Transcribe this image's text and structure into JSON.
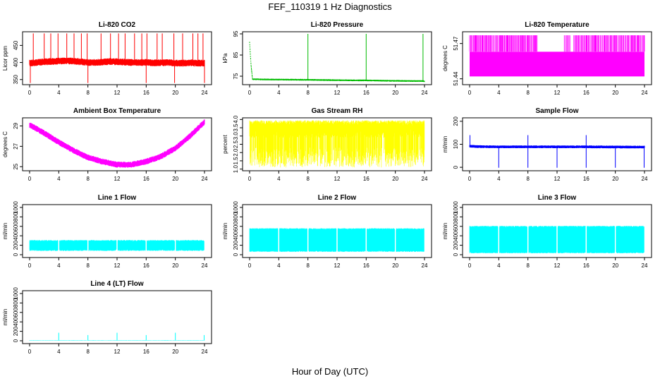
{
  "figure": {
    "title": "FEF_110319  1 Hz Diagnostics",
    "xlabel": "Hour of Day (UTC)"
  },
  "chart_data": [
    {
      "id": "co2",
      "type": "line",
      "title": "Li-820 CO2",
      "ylabel": "Licor ppm",
      "color": "#ff0000",
      "xlim": [
        0,
        24
      ],
      "ylim": [
        335,
        490
      ],
      "xticks": [
        0,
        4,
        8,
        12,
        16,
        20,
        24
      ],
      "yticks": [
        350,
        400,
        450
      ],
      "x": [
        0,
        1,
        2,
        3,
        4,
        5,
        6,
        7,
        8,
        9,
        10,
        11,
        12,
        13,
        14,
        15,
        16,
        17,
        18,
        19,
        20,
        21,
        22,
        23,
        24
      ],
      "values": [
        398,
        400,
        402,
        403,
        404,
        405,
        404,
        402,
        400,
        400,
        401,
        403,
        402,
        401,
        400,
        400,
        400,
        399,
        399,
        400,
        398,
        398,
        399,
        398,
        398
      ],
      "band": 10,
      "spikes_up": [
        0.5,
        2.0,
        2.9,
        3.9,
        5.1,
        6.1,
        7.1,
        7.9,
        9.8,
        11.1,
        12.2,
        13.1,
        14.4,
        15.4,
        16.1,
        17.5,
        18.2,
        19.8,
        21.0,
        22.4,
        23.1,
        23.8
      ],
      "spike_up_value": 485,
      "spikes_down": [
        0.1,
        8.0,
        16.0,
        19.9,
        24.0
      ],
      "spike_down_value": 340
    },
    {
      "id": "pressure",
      "type": "line",
      "title": "Li-820 Pressure",
      "ylabel": "kPa",
      "color": "#00bb00",
      "xlim": [
        0,
        24
      ],
      "ylim": [
        71,
        96
      ],
      "xticks": [
        0,
        4,
        8,
        12,
        16,
        20,
        24
      ],
      "yticks": [
        75,
        85,
        95
      ],
      "x": [
        0,
        0.2,
        0.4,
        1,
        4,
        8,
        12,
        16,
        20,
        23.8,
        24
      ],
      "values": [
        91,
        80,
        73.6,
        73.5,
        73.4,
        73.3,
        73.1,
        73.0,
        72.8,
        72.7,
        72.6
      ],
      "band": 0.4,
      "spikes_up": [
        8.0,
        16.0,
        23.8
      ],
      "spike_up_value": 95,
      "spikes_down": [],
      "spike_down_value": 73
    },
    {
      "id": "licor-temp",
      "type": "line",
      "title": "Li-820 Temperature",
      "ylabel": "degrees C",
      "color": "#ff00ff",
      "xlim": [
        0,
        24
      ],
      "ylim": [
        51.435,
        51.48
      ],
      "xticks": [
        0,
        4,
        8,
        12,
        16,
        20,
        24
      ],
      "yticks": [
        51.44,
        51.47
      ],
      "ytick_labels": [
        "51.44",
        "51.47"
      ],
      "band_low": 51.442,
      "band_high": 51.463,
      "spike_up_value": 51.477,
      "spike_ranges": [
        [
          0.0,
          9.3
        ],
        [
          13.0,
          13.8
        ],
        [
          14.3,
          24.0
        ]
      ]
    },
    {
      "id": "box-temp",
      "type": "line",
      "title": "Ambient Box Temperature",
      "ylabel": "degrees C",
      "color": "#ff00ff",
      "xlim": [
        0,
        24
      ],
      "ylim": [
        24.6,
        29.8
      ],
      "xticks": [
        0,
        4,
        8,
        12,
        16,
        20,
        24
      ],
      "yticks": [
        25,
        27,
        29
      ],
      "x": [
        0,
        2,
        4,
        6,
        8,
        10,
        12,
        14,
        16,
        18,
        20,
        22,
        24
      ],
      "values": [
        29.1,
        28.3,
        27.4,
        26.6,
        25.9,
        25.5,
        25.2,
        25.2,
        25.5,
        26.0,
        26.8,
        28.0,
        29.4
      ],
      "band": 0.3
    },
    {
      "id": "rh",
      "type": "line",
      "title": "Gas Stream RH",
      "ylabel": "percent",
      "color": "#ffff00",
      "xlim": [
        0,
        24
      ],
      "ylim": [
        0.9,
        4.1
      ],
      "xticks": [
        0,
        4,
        8,
        12,
        16,
        20,
        24
      ],
      "yticks": [
        1.0,
        1.5,
        2.0,
        2.5,
        3.0,
        3.5,
        4.0
      ],
      "ytick_labels": [
        "1.0",
        "1.5",
        "2.0",
        "2.5",
        "3.0",
        "3.5",
        "4.0"
      ],
      "band_low": 1.1,
      "band_high": 3.95,
      "base_level": 3.5
    },
    {
      "id": "sample-flow",
      "type": "line",
      "title": "Sample Flow",
      "ylabel": "ml/min",
      "color": "#0000ff",
      "xlim": [
        0,
        24
      ],
      "ylim": [
        -15,
        215
      ],
      "xticks": [
        0,
        4,
        8,
        12,
        16,
        20,
        24
      ],
      "yticks": [
        0,
        100,
        200
      ],
      "x": [
        0,
        1,
        4,
        8,
        12,
        16,
        20,
        24
      ],
      "values": [
        92,
        90,
        89,
        89,
        89,
        89,
        88,
        88
      ],
      "band": 6,
      "spikes_up": [
        0.05,
        8.0,
        16.0
      ],
      "spike_up_value": 140,
      "spikes_down": [
        4.0,
        8.0,
        12.0,
        16.0,
        20.0,
        23.95
      ],
      "spike_down_value": -2
    },
    {
      "id": "line1-flow",
      "type": "line",
      "title": "Line 1 Flow",
      "ylabel": "ml/min",
      "color": "#00ffff",
      "xlim": [
        0,
        24
      ],
      "ylim": [
        -60,
        1060
      ],
      "xticks": [
        0,
        4,
        8,
        12,
        16,
        20,
        24
      ],
      "yticks": [
        0,
        200,
        400,
        600,
        800,
        1000
      ],
      "band_low": 80,
      "band_high": 310,
      "gaps": [
        4,
        8,
        12,
        16,
        20
      ]
    },
    {
      "id": "line2-flow",
      "type": "line",
      "title": "Line 2 Flow",
      "ylabel": "ml/min",
      "color": "#00ffff",
      "xlim": [
        0,
        24
      ],
      "ylim": [
        -60,
        1060
      ],
      "xticks": [
        0,
        4,
        8,
        12,
        16,
        20,
        24
      ],
      "yticks": [
        0,
        200,
        400,
        600,
        800,
        1000
      ],
      "band_low": 60,
      "band_high": 560,
      "gaps": [
        4,
        8,
        12,
        16,
        20
      ]
    },
    {
      "id": "line3-flow",
      "type": "line",
      "title": "Line 3 Flow",
      "ylabel": "ml/min",
      "color": "#00ffff",
      "xlim": [
        0,
        24
      ],
      "ylim": [
        -60,
        1060
      ],
      "xticks": [
        0,
        4,
        8,
        12,
        16,
        20,
        24
      ],
      "yticks": [
        0,
        200,
        400,
        600,
        800,
        1000
      ],
      "band_low": 30,
      "band_high": 610,
      "gaps": [
        4,
        8,
        12,
        16,
        20
      ]
    },
    {
      "id": "line4-flow",
      "type": "line",
      "title": "Line 4 (LT) Flow",
      "ylabel": "ml/min",
      "color": "#00ffff",
      "xlim": [
        0,
        24
      ],
      "ylim": [
        -60,
        1060
      ],
      "xticks": [
        0,
        4,
        8,
        12,
        16,
        20,
        24
      ],
      "yticks": [
        0,
        200,
        400,
        600,
        800,
        1000
      ],
      "x": [
        0,
        24
      ],
      "values": [
        10,
        10
      ],
      "band": 4,
      "spikes_up": [
        4.0,
        8.0,
        12.0,
        16.0,
        20.0,
        23.95
      ],
      "spike_up_values": [
        170,
        120,
        170,
        120,
        170,
        120
      ]
    }
  ]
}
